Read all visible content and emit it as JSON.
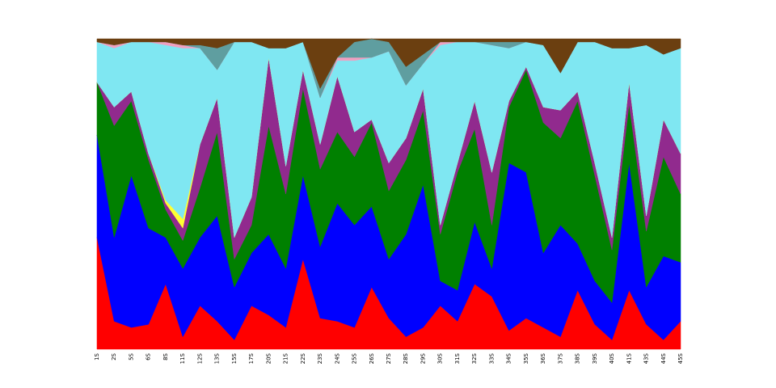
{
  "chart_data": {
    "type": "stacked-area",
    "categories": [
      "1S",
      "2S",
      "5S",
      "6S",
      "8S",
      "11S",
      "12S",
      "13S",
      "15S",
      "17S",
      "20S",
      "21S",
      "22S",
      "23S",
      "24S",
      "25S",
      "26S",
      "27S",
      "28S",
      "29S",
      "30S",
      "31S",
      "32S",
      "33S",
      "34S",
      "35S",
      "36S",
      "37S",
      "38S",
      "39S",
      "40S",
      "41S",
      "43S",
      "44S",
      "45S"
    ],
    "ylim": [
      0,
      100
    ],
    "series": [
      {
        "color": "#ff0000",
        "values": [
          36,
          9,
          7,
          8,
          21,
          4,
          14,
          9,
          3,
          14,
          11,
          7,
          29,
          10,
          9,
          7,
          20,
          10,
          4,
          7,
          14,
          9,
          21,
          17,
          6,
          10,
          7,
          4,
          19,
          8,
          3,
          19,
          8,
          3,
          9
        ]
      },
      {
        "color": "#0000ff",
        "values": [
          33,
          27,
          49,
          31,
          15,
          22,
          22,
          34,
          17,
          17,
          26,
          19,
          27,
          23,
          38,
          33,
          26,
          19,
          33,
          46,
          8,
          10,
          20,
          9,
          54,
          47,
          24,
          36,
          15,
          14,
          12,
          41,
          12,
          27,
          19
        ]
      },
      {
        "color": "#008000",
        "values": [
          17,
          36,
          24,
          22,
          9,
          9,
          16,
          27,
          9,
          9,
          35,
          24,
          28,
          25,
          23,
          22,
          27,
          22,
          24,
          24,
          15,
          38,
          30,
          14,
          18,
          33,
          42,
          28,
          46,
          34,
          17,
          19,
          18,
          32,
          22
        ]
      },
      {
        "color": "#912a8e",
        "values": [
          0,
          6,
          3,
          2,
          2,
          4,
          14,
          11,
          7,
          9,
          22,
          9,
          6,
          8,
          18,
          8,
          1,
          9,
          7,
          7,
          3,
          3,
          9,
          17,
          2,
          1,
          5,
          9,
          3,
          4,
          4,
          7,
          5,
          12,
          13
        ]
      },
      {
        "color": "#ffff33",
        "values": [
          0,
          0,
          0,
          0,
          1,
          3,
          0,
          0,
          0,
          0,
          0,
          0,
          0,
          0,
          0,
          0,
          0,
          0,
          0,
          0,
          0,
          0,
          0,
          0,
          0,
          0,
          0,
          0,
          0,
          0,
          0,
          0,
          0,
          0,
          0
        ]
      },
      {
        "color": "#7fe7f2",
        "values": [
          13,
          19,
          16,
          36,
          50,
          55,
          31,
          9,
          63,
          50,
          3,
          38,
          9,
          15,
          5,
          23,
          20,
          36,
          17,
          8,
          58,
          39,
          19,
          41,
          17,
          8,
          20,
          12,
          16,
          39,
          61,
          11,
          55,
          21,
          34
        ]
      },
      {
        "color": "#f0a0c0",
        "values": [
          0,
          1,
          0,
          0,
          1,
          1,
          0,
          0,
          0,
          0,
          0,
          0,
          0,
          0,
          1,
          1,
          0,
          0,
          0,
          0,
          1,
          0,
          0,
          0,
          0,
          0,
          0,
          0,
          0,
          0,
          0,
          0,
          0,
          0,
          0
        ]
      },
      {
        "color": "#5f9ea0",
        "values": [
          0,
          0,
          0,
          0,
          0,
          0,
          1,
          7,
          0,
          0,
          0,
          0,
          0,
          3,
          0,
          5,
          6,
          3,
          6,
          3,
          0,
          0,
          0,
          1,
          2,
          0,
          0,
          0,
          0,
          0,
          0,
          0,
          0,
          0,
          0
        ]
      },
      {
        "color": "#6b3f10",
        "values": [
          1,
          2,
          1,
          1,
          1,
          2,
          2,
          3,
          1,
          1,
          3,
          3,
          1,
          16,
          6,
          1,
          0,
          1,
          9,
          5,
          1,
          1,
          1,
          1,
          1,
          1,
          2,
          11,
          1,
          1,
          3,
          3,
          2,
          5,
          3
        ]
      }
    ]
  }
}
